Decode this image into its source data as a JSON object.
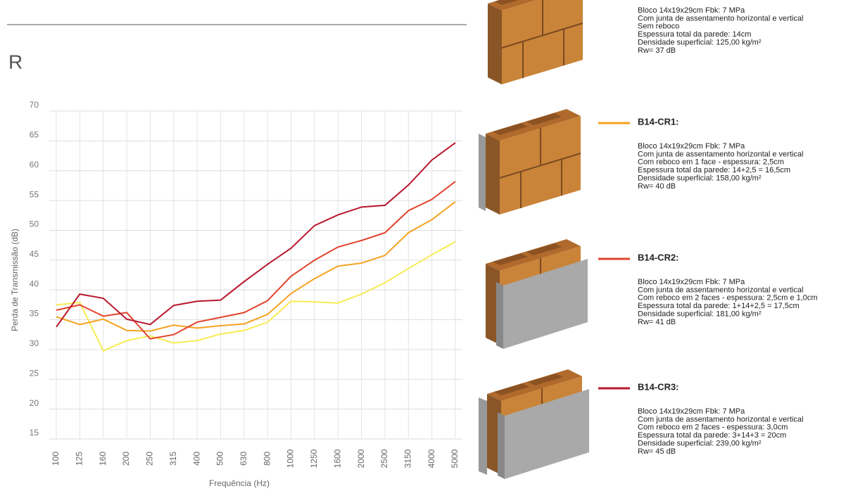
{
  "chart_data": {
    "type": "line",
    "title": "R",
    "xlabel": "Frequência (Hz)",
    "ylabel": "Perda de Transmissão (dB)",
    "categories": [
      "100",
      "125",
      "160",
      "200",
      "250",
      "315",
      "400",
      "500",
      "630",
      "800",
      "1000",
      "1250",
      "1600",
      "2000",
      "2500",
      "3150",
      "4000",
      "5000"
    ],
    "ylim": [
      15,
      70
    ],
    "yticks": [
      15,
      20,
      25,
      30,
      35,
      40,
      45,
      50,
      55,
      60,
      65,
      70
    ],
    "grid": true,
    "series": [
      {
        "color": "#f7ec52",
        "values": [
          37.5,
          37.9,
          29.8,
          31.5,
          32.3,
          31.1,
          31.5,
          32.6,
          33.2,
          34.6,
          38.1,
          38.0,
          37.8,
          39.3,
          41.2,
          43.6,
          45.9,
          48.1
        ],
        "description": [
          "Bloco 14x19x29cm Fbk: 7 MPa",
          "Com junta de assentamento horizontal e vertical",
          "Sem reboco",
          "Espessura total da parede: 14cm",
          "Densidade superficial: 125,00 kg/m²",
          "Rw= 37 dB"
        ]
      },
      {
        "name": "B14-CR1:",
        "color": "#f5a21f",
        "values": [
          35.5,
          34.2,
          35.1,
          33.2,
          33.1,
          34.1,
          33.6,
          34.0,
          34.3,
          35.9,
          39.4,
          41.9,
          44.0,
          44.5,
          45.8,
          49.6,
          51.8,
          54.8
        ],
        "description": [
          "Bloco 14x19x29cm Fbk: 7 MPa",
          "Com junta de assentamento horizontal e vertical",
          "Com reboco em 1 face - espessura: 2,5cm",
          "Espessura total da parede: 14+2,5 = 16,5cm",
          "Densidade superficial: 158,00 kg/m²",
          "Rw= 40 dB"
        ]
      },
      {
        "name": "B14-CR2:",
        "color": "#e2432c",
        "values": [
          36.6,
          37.5,
          35.6,
          36.2,
          31.8,
          32.5,
          34.6,
          35.4,
          36.2,
          38.2,
          42.3,
          45.0,
          47.2,
          48.3,
          49.6,
          53.3,
          55.2,
          58.2
        ],
        "description": [
          "Bloco 14x19x29cm Fbk: 7 MPa",
          "Com junta de assentamento horizontal e vertical",
          "Com reboco em 2 faces - espessura: 2,5cm e 1,0cm",
          "Espessura total da parede: 1+14+2,5 = 17,5cm",
          "Densidade superficial: 181,00 kg/m²",
          "Rw= 41 dB"
        ]
      },
      {
        "name": "B14-CR3:",
        "color": "#b8172d",
        "values": [
          33.8,
          39.3,
          38.6,
          35.1,
          34.2,
          37.4,
          38.1,
          38.3,
          41.4,
          44.3,
          47.0,
          50.8,
          52.6,
          53.9,
          54.2,
          57.6,
          61.8,
          64.7
        ],
        "description": [
          "Bloco 14x19x29cm Fbk: 7 MPa",
          "Com junta de assentamento horizontal e vertical",
          "Com reboco em 2 faces - espessura: 3,0cm",
          "Espessura total da parede: 3+14+3 = 20cm",
          "Densidade superficial: 239,00 kg/m²",
          "Rw= 45 dB"
        ]
      }
    ]
  }
}
